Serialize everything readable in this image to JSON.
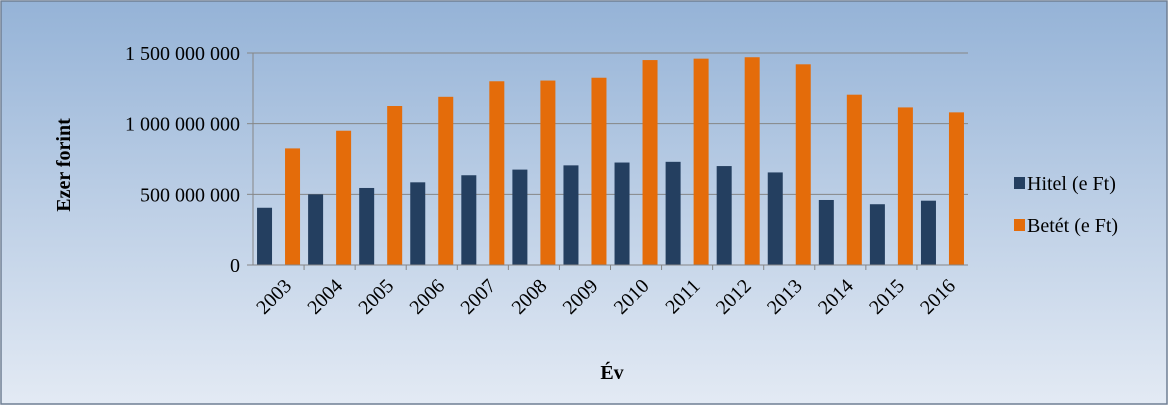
{
  "chart_data": {
    "type": "bar",
    "title": "",
    "xlabel": "Év",
    "ylabel": "Ezer forint",
    "ylim": [
      0,
      1500000000
    ],
    "yticks": [
      0,
      500000000,
      1000000000,
      1500000000
    ],
    "ytick_labels": [
      "0",
      "500 000 000",
      "1 000 000 000",
      "1 500 000 000"
    ],
    "grid": true,
    "legend_position": "right",
    "categories": [
      "2003",
      "2004",
      "2005",
      "2006",
      "2007",
      "2008",
      "2009",
      "2010",
      "2011",
      "2012",
      "2013",
      "2014",
      "2015",
      "2016"
    ],
    "series": [
      {
        "name": "Hitel (e Ft)",
        "color": "#243F60",
        "values": [
          405000000,
          500000000,
          545000000,
          585000000,
          635000000,
          675000000,
          705000000,
          725000000,
          730000000,
          700000000,
          655000000,
          460000000,
          430000000,
          455000000
        ]
      },
      {
        "name": "Betét (e Ft)",
        "color": "#E46C0A",
        "values": [
          825000000,
          950000000,
          1125000000,
          1190000000,
          1300000000,
          1305000000,
          1325000000,
          1450000000,
          1460000000,
          1470000000,
          1420000000,
          1205000000,
          1115000000,
          1080000000
        ]
      }
    ]
  },
  "colors": {
    "background_top": "#95B3D7",
    "background_bottom": "#E3EAF4",
    "gridline": "#868686",
    "border": "#6F7F94"
  }
}
